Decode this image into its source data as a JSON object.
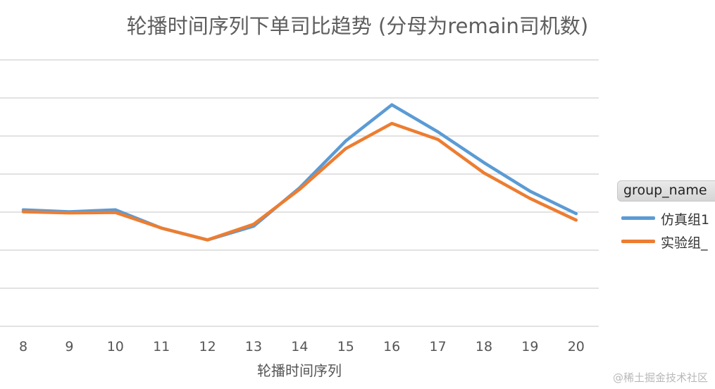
{
  "chart_data": {
    "type": "line",
    "title": "轮播时间序列下单司比趋势 (分母为remain司机数)",
    "xlabel": "轮播时间序列",
    "ylabel": "",
    "categories": [
      "8",
      "9",
      "10",
      "11",
      "12",
      "13",
      "14",
      "15",
      "16",
      "17",
      "18",
      "19",
      "20"
    ],
    "grid": true,
    "legend_position": "right",
    "legend_title": "group_name",
    "series": [
      {
        "name": "仿真组1",
        "color": "#5b9bd5",
        "values": [
          3.06,
          3.01,
          3.06,
          2.58,
          2.27,
          2.63,
          3.64,
          4.87,
          5.82,
          5.11,
          4.3,
          3.55,
          2.96
        ]
      },
      {
        "name": "实验组_",
        "color": "#ed7d31",
        "values": [
          3.01,
          2.98,
          2.99,
          2.58,
          2.27,
          2.68,
          3.6,
          4.67,
          5.33,
          4.91,
          4.03,
          3.36,
          2.79
        ]
      }
    ]
  },
  "watermark": "@稀土掘金技术社区"
}
